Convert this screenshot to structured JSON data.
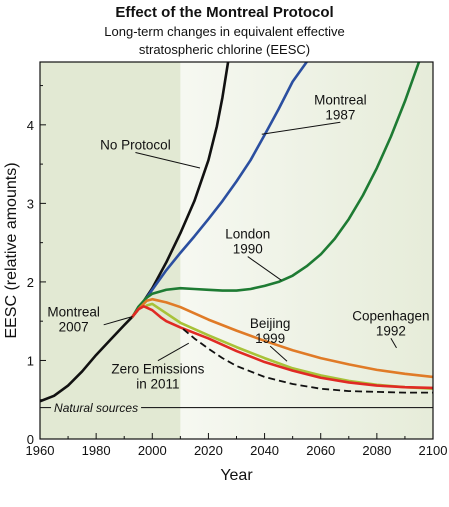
{
  "chart_data": {
    "type": "line",
    "title": "Effect of the Montreal Protocol",
    "subtitle_lines": [
      "Long-term changes in equivalent effective",
      "stratospheric chlorine (EESC)"
    ],
    "xlabel": "Year",
    "ylabel": "EESC (relative amounts)",
    "xlim": [
      1960,
      2100
    ],
    "ylim": [
      0,
      4.8
    ],
    "xticks": [
      1960,
      1980,
      2000,
      2020,
      2040,
      2060,
      2080,
      2100
    ],
    "yticks": [
      0,
      1,
      2,
      3,
      4
    ],
    "shaded_observed_period": [
      1960,
      2010
    ],
    "grid": false,
    "series": [
      {
        "name": "No Protocol",
        "color": "#111111",
        "dashed": false,
        "x": [
          1960,
          1965,
          1970,
          1975,
          1980,
          1985,
          1990,
          1993,
          1995,
          2000,
          2005,
          2010,
          2015,
          2020,
          2023,
          2025,
          2027
        ],
        "y": [
          0.48,
          0.55,
          0.68,
          0.86,
          1.07,
          1.26,
          1.45,
          1.56,
          1.65,
          1.92,
          2.25,
          2.62,
          3.03,
          3.55,
          3.98,
          4.35,
          4.8
        ]
      },
      {
        "name": "Montreal 1987",
        "color": "#2b4fa0",
        "dashed": false,
        "x": [
          1993,
          1995,
          2000,
          2005,
          2010,
          2015,
          2020,
          2025,
          2030,
          2035,
          2040,
          2045,
          2050,
          2055
        ],
        "y": [
          1.56,
          1.65,
          1.9,
          2.15,
          2.37,
          2.58,
          2.8,
          3.03,
          3.28,
          3.55,
          3.87,
          4.2,
          4.55,
          4.8
        ]
      },
      {
        "name": "London 1990",
        "color": "#1e7b33",
        "dashed": false,
        "x": [
          1993,
          1995,
          1998,
          2000,
          2005,
          2010,
          2015,
          2020,
          2025,
          2030,
          2035,
          2040,
          2045,
          2050,
          2055,
          2060,
          2065,
          2070,
          2075,
          2080,
          2085,
          2090,
          2095,
          2100
        ],
        "y": [
          1.56,
          1.68,
          1.8,
          1.85,
          1.9,
          1.92,
          1.91,
          1.9,
          1.89,
          1.89,
          1.91,
          1.95,
          2.0,
          2.08,
          2.2,
          2.35,
          2.55,
          2.8,
          3.1,
          3.45,
          3.85,
          4.3,
          4.8,
          4.95
        ]
      },
      {
        "name": "Copenhagen 1992",
        "color": "#e07b27",
        "dashed": false,
        "x": [
          1993,
          1995,
          1998,
          2000,
          2005,
          2010,
          2015,
          2020,
          2030,
          2040,
          2050,
          2060,
          2070,
          2080,
          2090,
          2100
        ],
        "y": [
          1.56,
          1.65,
          1.76,
          1.78,
          1.74,
          1.68,
          1.6,
          1.52,
          1.38,
          1.25,
          1.13,
          1.03,
          0.95,
          0.88,
          0.83,
          0.79
        ]
      },
      {
        "name": "Beijing 1999",
        "color": "#a8c238",
        "dashed": false,
        "x": [
          1998,
          2000,
          2005,
          2010,
          2015,
          2020,
          2030,
          2040,
          2050,
          2060,
          2070,
          2080,
          2090,
          2100
        ],
        "y": [
          1.7,
          1.72,
          1.6,
          1.48,
          1.4,
          1.32,
          1.17,
          1.03,
          0.9,
          0.81,
          0.74,
          0.69,
          0.66,
          0.64
        ]
      },
      {
        "name": "Montreal 2007",
        "color": "#e02a24",
        "dashed": false,
        "x": [
          1993,
          1995,
          1997,
          2000,
          2003,
          2005,
          2010,
          2015,
          2020,
          2030,
          2040,
          2050,
          2060,
          2070,
          2080,
          2090,
          2100
        ],
        "y": [
          1.56,
          1.65,
          1.69,
          1.64,
          1.55,
          1.5,
          1.42,
          1.35,
          1.28,
          1.12,
          0.98,
          0.87,
          0.78,
          0.72,
          0.68,
          0.66,
          0.65
        ]
      },
      {
        "name": "Zero Emissions in 2011",
        "color": "#111111",
        "dashed": true,
        "x": [
          2011,
          2015,
          2020,
          2025,
          2030,
          2040,
          2050,
          2060,
          2070,
          2080,
          2090,
          2100
        ],
        "y": [
          1.4,
          1.28,
          1.15,
          1.03,
          0.93,
          0.79,
          0.7,
          0.64,
          0.61,
          0.6,
          0.59,
          0.59
        ]
      }
    ],
    "reference_line": {
      "label": "Natural sources",
      "y": 0.4
    },
    "annotations": [
      {
        "lines": [
          "No Protocol"
        ],
        "series": "No Protocol",
        "at": [
          1994,
          3.75
        ],
        "pointer_to": [
          2017,
          3.45
        ]
      },
      {
        "lines": [
          "Montreal",
          "1987"
        ],
        "series": "Montreal 1987",
        "at": [
          2067,
          4.23
        ],
        "pointer_to": [
          2039,
          3.88
        ]
      },
      {
        "lines": [
          "London",
          "1990"
        ],
        "series": "London 1990",
        "at": [
          2034,
          2.52
        ],
        "pointer_to": [
          2046,
          2.02
        ]
      },
      {
        "lines": [
          "Beijing",
          "1999"
        ],
        "series": "Beijing 1999",
        "at": [
          2042,
          1.38
        ],
        "pointer_to": [
          2048,
          0.99
        ]
      },
      {
        "lines": [
          "Copenhagen",
          "1992"
        ],
        "series": "Copenhagen 1992",
        "at": [
          2085,
          1.48
        ],
        "pointer_to": [
          2087,
          1.16
        ]
      },
      {
        "lines": [
          "Montreal",
          "2007"
        ],
        "series": "Montreal 2007",
        "at": [
          1972,
          1.53
        ],
        "pointer_to": [
          1993,
          1.56
        ]
      },
      {
        "lines": [
          "Zero Emissions",
          "in 2011"
        ],
        "series": "Zero Emissions in 2011",
        "at": [
          2002,
          0.8
        ],
        "pointer_to": [
          2013,
          1.22
        ]
      }
    ]
  }
}
